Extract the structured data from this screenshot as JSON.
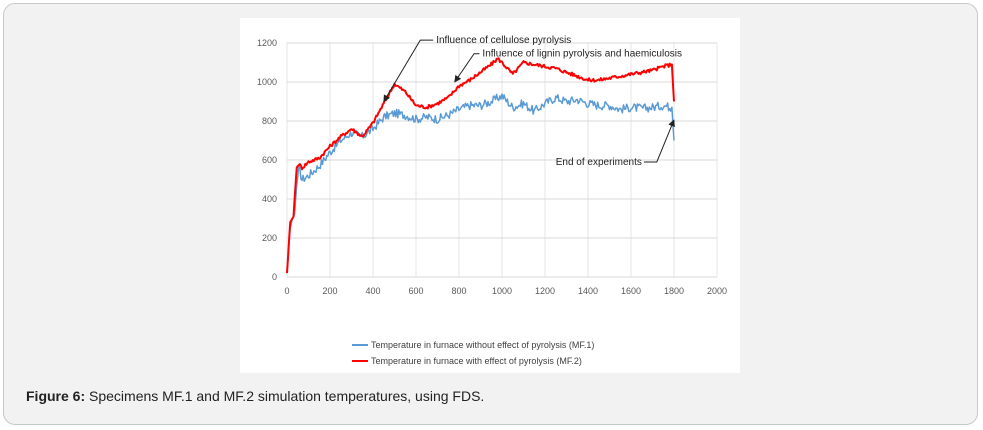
{
  "caption": {
    "label": "Figure 6:",
    "text": "Specimens MF.1 and MF.2 simulation temperatures, using FDS."
  },
  "chart_data": {
    "type": "line",
    "title": "",
    "xlabel": "",
    "ylabel": "",
    "xlim": [
      0,
      2000
    ],
    "ylim": [
      0,
      1200
    ],
    "x_ticks": [
      0,
      200,
      400,
      600,
      800,
      1000,
      1200,
      1400,
      1600,
      1800,
      2000
    ],
    "y_ticks": [
      0,
      200,
      400,
      600,
      800,
      1000,
      1200
    ],
    "grid": "horizontal",
    "legend_position": "bottom",
    "series": [
      {
        "name": "Temperature in furnace without effect of pyrolysis (MF.1)",
        "color": "#5b9bd5",
        "points": [
          [
            0,
            20
          ],
          [
            15,
            250
          ],
          [
            25,
            300
          ],
          [
            35,
            320
          ],
          [
            45,
            470
          ],
          [
            55,
            560
          ],
          [
            70,
            500
          ],
          [
            100,
            520
          ],
          [
            150,
            570
          ],
          [
            200,
            640
          ],
          [
            250,
            700
          ],
          [
            300,
            740
          ],
          [
            350,
            720
          ],
          [
            400,
            760
          ],
          [
            450,
            820
          ],
          [
            500,
            840
          ],
          [
            550,
            830
          ],
          [
            600,
            810
          ],
          [
            650,
            820
          ],
          [
            700,
            810
          ],
          [
            750,
            830
          ],
          [
            800,
            860
          ],
          [
            850,
            880
          ],
          [
            900,
            880
          ],
          [
            950,
            900
          ],
          [
            1000,
            930
          ],
          [
            1050,
            870
          ],
          [
            1100,
            890
          ],
          [
            1150,
            850
          ],
          [
            1200,
            890
          ],
          [
            1250,
            920
          ],
          [
            1300,
            900
          ],
          [
            1350,
            910
          ],
          [
            1400,
            890
          ],
          [
            1450,
            880
          ],
          [
            1500,
            880
          ],
          [
            1550,
            860
          ],
          [
            1600,
            870
          ],
          [
            1650,
            865
          ],
          [
            1700,
            870
          ],
          [
            1750,
            880
          ],
          [
            1790,
            870
          ],
          [
            1800,
            700
          ]
        ]
      },
      {
        "name": "Temperature in furnace with effect of pyrolysis (MF.2)",
        "color": "#ff0000",
        "points": [
          [
            0,
            20
          ],
          [
            15,
            280
          ],
          [
            30,
            310
          ],
          [
            45,
            560
          ],
          [
            55,
            580
          ],
          [
            70,
            560
          ],
          [
            100,
            590
          ],
          [
            150,
            610
          ],
          [
            200,
            670
          ],
          [
            250,
            720
          ],
          [
            300,
            760
          ],
          [
            350,
            720
          ],
          [
            400,
            790
          ],
          [
            450,
            890
          ],
          [
            500,
            990
          ],
          [
            550,
            950
          ],
          [
            600,
            880
          ],
          [
            650,
            870
          ],
          [
            700,
            890
          ],
          [
            750,
            920
          ],
          [
            800,
            980
          ],
          [
            850,
            1010
          ],
          [
            900,
            1050
          ],
          [
            950,
            1090
          ],
          [
            980,
            1120
          ],
          [
            1000,
            1100
          ],
          [
            1050,
            1040
          ],
          [
            1100,
            1100
          ],
          [
            1150,
            1090
          ],
          [
            1200,
            1080
          ],
          [
            1250,
            1070
          ],
          [
            1300,
            1050
          ],
          [
            1350,
            1030
          ],
          [
            1400,
            1010
          ],
          [
            1450,
            1010
          ],
          [
            1500,
            1020
          ],
          [
            1550,
            1030
          ],
          [
            1600,
            1040
          ],
          [
            1650,
            1050
          ],
          [
            1700,
            1060
          ],
          [
            1750,
            1080
          ],
          [
            1790,
            1090
          ],
          [
            1800,
            900
          ]
        ]
      }
    ],
    "annotations": [
      {
        "text": "Influence of cellulose pyrolysis",
        "target": [
          450,
          900
        ]
      },
      {
        "text": "Influence of lignin pyrolysis and haemiculosis",
        "target": [
          780,
          1000
        ]
      },
      {
        "text": "End of experiments",
        "target": [
          1800,
          800
        ]
      }
    ]
  }
}
